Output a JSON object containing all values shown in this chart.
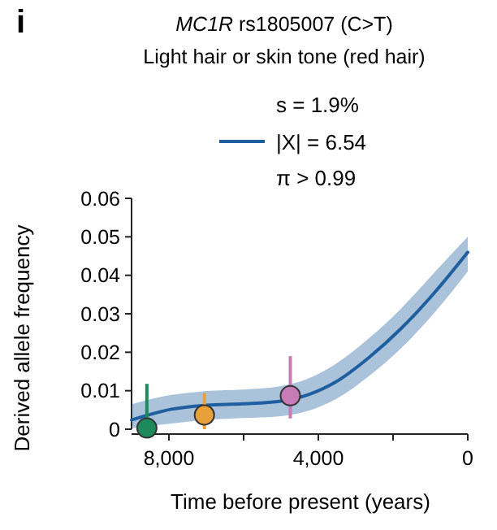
{
  "chart_data": {
    "type": "line",
    "title": "MC1R rs1805007 (C>T)",
    "subtitle": "Light hair or skin tone (red hair)",
    "xlabel": "Time before present (years)",
    "ylabel": "Derived allele frequency",
    "annotations": [
      "i",
      "s = 1.9%",
      "π > 0.99"
    ],
    "xlim": [
      9000,
      0
    ],
    "xticks": [
      {
        "value": 8000,
        "label": "8,000"
      },
      {
        "value": 6000,
        "label": null
      },
      {
        "value": 4000,
        "label": "4,000"
      },
      {
        "value": 2000,
        "label": null
      },
      0
    ],
    "ylim": [
      0,
      0.06
    ],
    "yticks": [
      0,
      0.01,
      0.02,
      0.03,
      0.04,
      0.05,
      0.06
    ],
    "grid": false,
    "legend": "top",
    "series": [
      {
        "name": "|X| = 6.54",
        "color": "#1f5f9f",
        "x": [
          9000,
          7930,
          7050,
          6020,
          5000,
          4260,
          3530,
          2650,
          1770,
          890,
          0
        ],
        "values": [
          0.0024,
          0.0052,
          0.0062,
          0.0066,
          0.0073,
          0.009,
          0.0123,
          0.0186,
          0.0263,
          0.0355,
          0.046
        ],
        "lower": [
          0.0003,
          0.0015,
          0.0024,
          0.0029,
          0.0034,
          0.0048,
          0.0078,
          0.0138,
          0.0212,
          0.0303,
          0.041
        ],
        "upper": [
          0.0065,
          0.0089,
          0.0099,
          0.0103,
          0.0112,
          0.0132,
          0.017,
          0.0236,
          0.0315,
          0.0408,
          0.05
        ]
      },
      {
        "type": "scatter",
        "x": [
          8590,
          7050,
          4750
        ],
        "values": [
          0.0003,
          0.0037,
          0.0087
        ],
        "colors": [
          "#1e8a5c",
          "#e8a03a",
          "#c77cb8"
        ],
        "errors": [
          [
            0,
            0.0118
          ],
          [
            0,
            0.0094
          ],
          [
            0.0028,
            0.019
          ]
        ]
      }
    ]
  }
}
